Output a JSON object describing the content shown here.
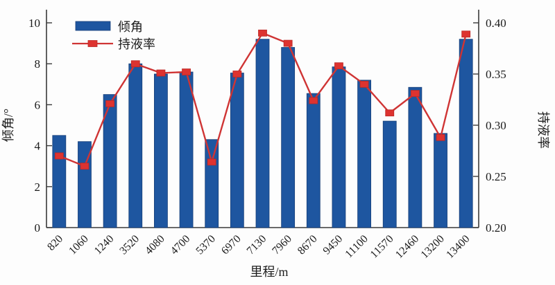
{
  "chart_data": {
    "type": "bar+line",
    "title": "",
    "xlabel": "里程/m",
    "ylabel_left": "倾角/°",
    "ylabel_right": "持液率",
    "categories": [
      "820",
      "1060",
      "1240",
      "3520",
      "4080",
      "4700",
      "5370",
      "6970",
      "7130",
      "7960",
      "8670",
      "9450",
      "11100",
      "11570",
      "12460",
      "13200",
      "13400"
    ],
    "series": [
      {
        "name": "倾角",
        "type": "bar",
        "axis": "left",
        "color": "#1e56a0",
        "values": [
          4.5,
          4.2,
          6.5,
          8.0,
          7.5,
          7.6,
          4.3,
          7.55,
          9.2,
          8.8,
          6.55,
          7.85,
          7.2,
          5.2,
          6.85,
          4.6,
          9.2
        ]
      },
      {
        "name": "持液率",
        "type": "line",
        "marker": "square",
        "axis": "right",
        "color": "#cf3434",
        "values": [
          0.27,
          0.26,
          0.321,
          0.36,
          0.351,
          0.352,
          0.264,
          0.35,
          0.39,
          0.38,
          0.324,
          0.358,
          0.34,
          0.312,
          0.331,
          0.288,
          0.389
        ]
      }
    ],
    "left_axis": {
      "min": 0,
      "max": 10,
      "ticks": [
        0,
        2,
        4,
        6,
        8,
        10
      ]
    },
    "right_axis": {
      "min": 0.2,
      "max": 0.4,
      "ticks": [
        0.2,
        0.25,
        0.3,
        0.35,
        0.4
      ],
      "decimals": 2
    },
    "grid": false,
    "legend_position": "top-left",
    "legend": [
      "倾角",
      "持液率"
    ]
  },
  "colors": {
    "bar_fill": "#1e56a0",
    "bar_edge": "#173f78",
    "line": "#cf3434",
    "marker_fill": "#dd3330",
    "marker_edge": "#bb2826",
    "axis": "#3a3a3a",
    "text": "#1b1b1b",
    "background": "#fdfdfd"
  }
}
